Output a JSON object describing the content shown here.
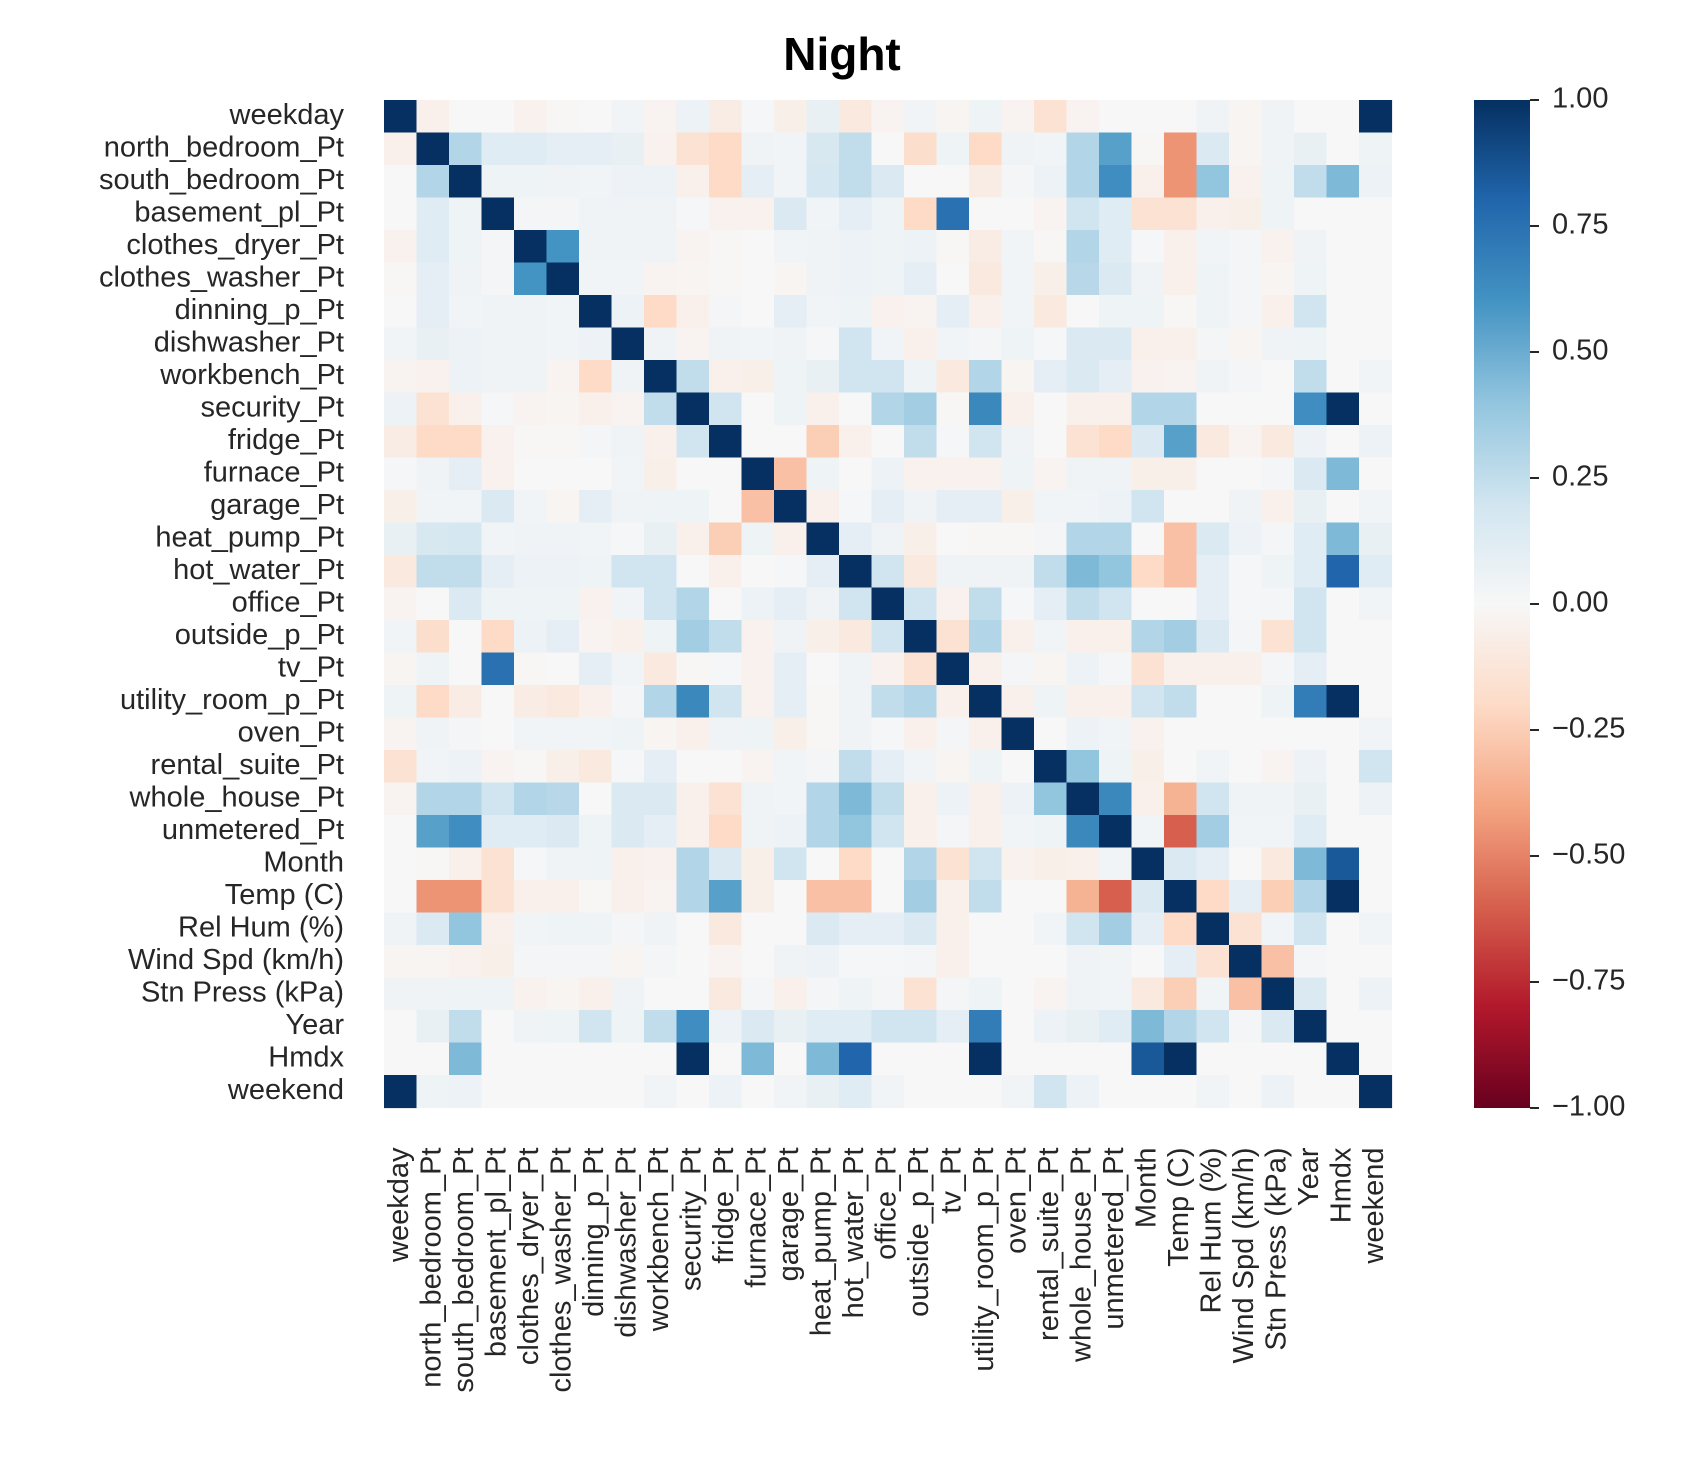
{
  "chart_data": {
    "type": "heatmap",
    "title": "Night",
    "xlabel": "",
    "ylabel": "",
    "variables": [
      "weekday",
      "north_bedroom_Pt",
      "south_bedroom_Pt",
      "basement_pl_Pt",
      "clothes_dryer_Pt",
      "clothes_washer_Pt",
      "dinning_p_Pt",
      "dishwasher_Pt",
      "workbench_Pt",
      "security_Pt",
      "fridge_Pt",
      "furnace_Pt",
      "garage_Pt",
      "heat_pump_Pt",
      "hot_water_Pt",
      "office_Pt",
      "outside_p_Pt",
      "tv_Pt",
      "utility_room_p_Pt",
      "oven_Pt",
      "rental_suite_Pt",
      "whole_house_Pt",
      "unmetered_Pt",
      "Month",
      "Temp (C)",
      "Rel Hum (%)",
      "Wind Spd (km/h)",
      "Stn Press (kPa)",
      "Year",
      "Hmdx",
      "weekend"
    ],
    "vmin": -1.0,
    "vmax": 1.0,
    "colormap": "RdBu",
    "colorbar_ticks": [
      "1.00",
      "0.75",
      "0.50",
      "0.25",
      "0.00",
      "−0.25",
      "−0.50",
      "−0.75",
      "−1.00"
    ],
    "colorbar_tick_values": [
      1.0,
      0.75,
      0.5,
      0.25,
      0.0,
      -0.25,
      -0.5,
      -0.75,
      -1.0
    ],
    "matrix": [
      [
        1,
        -0.05,
        0,
        0,
        -0.04,
        -0.01,
        0,
        0.03,
        -0.03,
        0.06,
        -0.08,
        0.01,
        -0.06,
        0.08,
        -0.1,
        -0.03,
        0.03,
        -0.02,
        0.05,
        -0.03,
        -0.15,
        -0.03,
        0,
        0,
        0,
        0.04,
        -0.02,
        0.04,
        0,
        0,
        1
      ],
      [
        -0.05,
        1,
        0.3,
        0.12,
        0.12,
        0.1,
        0.1,
        0.08,
        -0.04,
        -0.15,
        -0.2,
        0.04,
        0.03,
        0.17,
        0.25,
        0,
        -0.18,
        0.05,
        -0.2,
        0.04,
        0.03,
        0.3,
        0.55,
        -0.01,
        -0.45,
        0.15,
        -0.02,
        0.04,
        0.08,
        0,
        0.05
      ],
      [
        0,
        0.3,
        1,
        0.05,
        0.05,
        0.04,
        0.03,
        0.06,
        0.06,
        -0.05,
        -0.2,
        0.1,
        0.03,
        0.18,
        0.25,
        0.15,
        0,
        0,
        -0.08,
        0.02,
        0.06,
        0.3,
        0.62,
        -0.05,
        -0.45,
        0.4,
        -0.04,
        0.05,
        0.25,
        0.45,
        0.06
      ],
      [
        0,
        0.12,
        0.05,
        1,
        0.02,
        0.02,
        0.04,
        0.04,
        0.04,
        0.01,
        -0.04,
        -0.04,
        0.15,
        0.03,
        0.1,
        0.05,
        -0.2,
        0.75,
        0,
        0,
        -0.03,
        0.2,
        0.12,
        -0.15,
        -0.15,
        -0.05,
        -0.06,
        0.05,
        0,
        0,
        0
      ],
      [
        -0.04,
        0.12,
        0.05,
        0.02,
        1,
        0.6,
        0.04,
        0.04,
        0.04,
        -0.03,
        -0.01,
        0,
        0.03,
        0.04,
        0.06,
        0.05,
        0.06,
        -0.01,
        -0.08,
        0.03,
        -0.01,
        0.3,
        0.12,
        0.01,
        -0.05,
        0.03,
        0.02,
        -0.04,
        0.04,
        0,
        0
      ],
      [
        -0.01,
        0.1,
        0.04,
        0.02,
        0.6,
        1,
        0.03,
        0.03,
        -0.03,
        -0.02,
        -0.01,
        0,
        -0.02,
        0.04,
        0.06,
        0.05,
        0.1,
        0,
        -0.1,
        0.03,
        -0.06,
        0.28,
        0.15,
        0.04,
        -0.05,
        0.05,
        0.02,
        -0.02,
        0.05,
        0,
        0
      ],
      [
        0,
        0.1,
        0.03,
        0.04,
        0.04,
        0.03,
        1,
        0.06,
        -0.2,
        -0.05,
        0.02,
        0,
        0.1,
        0.03,
        0.05,
        -0.04,
        -0.03,
        0.1,
        -0.05,
        0.03,
        -0.1,
        0,
        0.05,
        0.05,
        -0.01,
        0.05,
        0.02,
        -0.05,
        0.2,
        0,
        0
      ],
      [
        0.03,
        0.08,
        0.06,
        0.04,
        0.04,
        0.03,
        0.06,
        1,
        0.04,
        -0.03,
        0.04,
        0.03,
        0.04,
        0.01,
        0.2,
        0.03,
        -0.05,
        0.03,
        0.02,
        0.05,
        0.01,
        0.15,
        0.15,
        -0.05,
        -0.05,
        0.02,
        -0.02,
        0.04,
        0.05,
        0,
        0
      ],
      [
        -0.03,
        -0.04,
        0.06,
        0.04,
        0.04,
        -0.03,
        -0.2,
        0.04,
        1,
        0.25,
        -0.05,
        -0.06,
        0.05,
        0.08,
        0.2,
        0.2,
        0.05,
        -0.1,
        0.3,
        -0.02,
        0.1,
        0.15,
        0.1,
        -0.04,
        -0.03,
        0.04,
        0.02,
        0,
        0.25,
        0,
        0.03
      ],
      [
        0.06,
        -0.15,
        -0.05,
        0.01,
        -0.03,
        -0.02,
        -0.05,
        -0.03,
        0.25,
        1,
        0.2,
        0,
        0.05,
        -0.05,
        0,
        0.3,
        0.35,
        -0.01,
        0.65,
        -0.05,
        0,
        -0.05,
        -0.05,
        0.3,
        0.3,
        0,
        0,
        0,
        0.62,
        1,
        0
      ],
      [
        -0.08,
        -0.2,
        -0.2,
        -0.04,
        -0.01,
        -0.01,
        0.02,
        0.04,
        -0.05,
        0.2,
        1,
        0,
        0,
        -0.25,
        -0.05,
        0,
        0.25,
        0.01,
        0.2,
        0.04,
        0,
        -0.15,
        -0.2,
        0.15,
        0.55,
        -0.1,
        -0.03,
        -0.1,
        0.06,
        0,
        0.06
      ],
      [
        0.01,
        0.04,
        0.1,
        -0.04,
        0,
        0,
        0,
        0.03,
        -0.06,
        0,
        0,
        1,
        -0.3,
        0.05,
        0,
        0.06,
        -0.04,
        -0.04,
        -0.04,
        0.05,
        -0.03,
        0.04,
        0.04,
        -0.06,
        -0.06,
        0,
        0,
        0.02,
        0.15,
        0.45,
        0
      ],
      [
        -0.06,
        0.03,
        0.03,
        0.15,
        0.03,
        -0.02,
        0.1,
        0.04,
        0.05,
        0.05,
        0,
        -0.3,
        1,
        -0.05,
        0.01,
        0.1,
        0.04,
        0.1,
        0.1,
        -0.06,
        0.03,
        0.03,
        0.06,
        0.2,
        0,
        0,
        0.04,
        -0.05,
        0.08,
        0,
        0.03
      ],
      [
        0.08,
        0.17,
        0.18,
        0.03,
        0.04,
        0.04,
        0.03,
        0.01,
        0.08,
        -0.05,
        -0.25,
        0.05,
        -0.05,
        1,
        0.1,
        0.04,
        -0.06,
        0,
        -0.01,
        -0.01,
        0.02,
        0.3,
        0.3,
        0,
        -0.3,
        0.15,
        0.06,
        0.02,
        0.12,
        0.45,
        0.08
      ],
      [
        -0.1,
        0.25,
        0.25,
        0.1,
        0.06,
        0.06,
        0.05,
        0.2,
        0.2,
        0,
        -0.05,
        0,
        0.01,
        0.1,
        1,
        0.2,
        -0.1,
        0.04,
        0.04,
        0.04,
        0.25,
        0.45,
        0.4,
        -0.2,
        -0.3,
        0.1,
        0.01,
        0.05,
        0.12,
        0.8,
        0.12
      ],
      [
        -0.03,
        0,
        0.15,
        0.05,
        0.05,
        0.05,
        -0.04,
        0.03,
        0.2,
        0.3,
        0,
        0.06,
        0.1,
        0.04,
        0.2,
        1,
        0.2,
        -0.04,
        0.25,
        0.01,
        0.1,
        0.25,
        0.2,
        0,
        0,
        0.1,
        0.01,
        0.02,
        0.2,
        0,
        0.03
      ],
      [
        0.03,
        -0.18,
        0,
        -0.2,
        0.06,
        0.1,
        -0.03,
        -0.05,
        0.05,
        0.35,
        0.25,
        -0.04,
        0.04,
        -0.06,
        -0.1,
        0.2,
        1,
        -0.15,
        0.3,
        -0.05,
        0.03,
        -0.05,
        -0.05,
        0.3,
        0.35,
        0.15,
        0.02,
        -0.15,
        0.2,
        0,
        0
      ],
      [
        -0.02,
        0.05,
        0,
        0.75,
        -0.01,
        0,
        0.1,
        0.03,
        -0.1,
        -0.01,
        0.01,
        -0.04,
        0.1,
        0,
        0.04,
        -0.04,
        -0.15,
        1,
        -0.05,
        0.02,
        -0.02,
        0.06,
        0.02,
        -0.15,
        -0.05,
        -0.05,
        -0.05,
        0.02,
        0.1,
        0,
        0
      ],
      [
        0.05,
        -0.2,
        -0.08,
        0,
        -0.08,
        -0.1,
        -0.05,
        0.02,
        0.3,
        0.65,
        0.2,
        -0.04,
        0.1,
        -0.01,
        0.04,
        0.25,
        0.3,
        -0.05,
        1,
        -0.05,
        0.05,
        -0.05,
        -0.05,
        0.2,
        0.25,
        0,
        0,
        0.05,
        0.7,
        1,
        0
      ],
      [
        -0.03,
        0.04,
        0.02,
        0,
        0.03,
        0.03,
        0.03,
        0.05,
        -0.02,
        -0.05,
        0.04,
        0.05,
        -0.06,
        -0.01,
        0.04,
        0.01,
        -0.05,
        0.02,
        -0.05,
        1,
        0,
        0.06,
        0.03,
        -0.04,
        0,
        0,
        0,
        0,
        0,
        0,
        0.03
      ],
      [
        -0.15,
        0.03,
        0.06,
        -0.03,
        -0.01,
        -0.06,
        -0.1,
        0.01,
        0.1,
        0,
        0,
        -0.03,
        0.03,
        0.02,
        0.25,
        0.1,
        0.03,
        -0.02,
        0.05,
        0,
        1,
        0.4,
        0.05,
        -0.06,
        0,
        0.03,
        0,
        -0.03,
        0.06,
        0,
        0.2
      ],
      [
        -0.03,
        0.3,
        0.3,
        0.2,
        0.3,
        0.28,
        0,
        0.15,
        0.15,
        -0.05,
        -0.15,
        0.04,
        0.03,
        0.3,
        0.45,
        0.25,
        -0.05,
        0.06,
        -0.05,
        0.06,
        0.4,
        1,
        0.65,
        -0.05,
        -0.35,
        0.2,
        0.04,
        0.04,
        0.08,
        0,
        0.06
      ],
      [
        0,
        0.55,
        0.62,
        0.12,
        0.12,
        0.15,
        0.05,
        0.15,
        0.1,
        -0.05,
        -0.2,
        0.04,
        0.06,
        0.3,
        0.4,
        0.2,
        -0.05,
        0.02,
        -0.05,
        0.03,
        0.05,
        0.65,
        1,
        0.03,
        -0.6,
        0.35,
        0.03,
        0.03,
        0.12,
        0,
        0
      ],
      [
        0,
        -0.01,
        -0.05,
        -0.15,
        0.01,
        0.04,
        0.05,
        -0.05,
        -0.04,
        0.3,
        0.15,
        -0.06,
        0.2,
        0,
        -0.2,
        0,
        0.3,
        -0.15,
        0.2,
        -0.04,
        -0.06,
        -0.05,
        0.03,
        1,
        0.15,
        0.1,
        0,
        -0.1,
        0.45,
        0.85,
        0
      ],
      [
        0,
        -0.45,
        -0.45,
        -0.15,
        -0.05,
        -0.05,
        -0.01,
        -0.05,
        -0.03,
        0.3,
        0.55,
        -0.06,
        0,
        -0.3,
        -0.3,
        0,
        0.35,
        -0.05,
        0.25,
        0,
        0,
        -0.35,
        -0.6,
        0.15,
        1,
        -0.2,
        0.1,
        -0.25,
        0.3,
        1,
        0
      ],
      [
        0.04,
        0.15,
        0.4,
        -0.05,
        0.03,
        0.05,
        0.05,
        0.02,
        0.04,
        0,
        -0.1,
        0,
        0,
        0.15,
        0.1,
        0.1,
        0.15,
        -0.05,
        0,
        0,
        0.03,
        0.2,
        0.35,
        0.1,
        -0.2,
        1,
        -0.15,
        0.03,
        0.2,
        0,
        0.03
      ],
      [
        -0.02,
        -0.02,
        -0.04,
        -0.06,
        0.02,
        0.02,
        0.02,
        -0.02,
        0.02,
        0,
        -0.03,
        0,
        0.04,
        0.06,
        0.01,
        0.01,
        0.02,
        -0.05,
        0,
        0,
        0,
        0.04,
        0.03,
        0,
        0.1,
        -0.15,
        1,
        -0.3,
        0.02,
        0,
        0
      ],
      [
        0.04,
        0.04,
        0.05,
        0.05,
        -0.04,
        -0.02,
        -0.05,
        0.04,
        0,
        0,
        -0.1,
        0.02,
        -0.05,
        0.02,
        0.05,
        0.02,
        -0.15,
        0.02,
        0.05,
        0,
        -0.03,
        0.04,
        0.03,
        -0.1,
        -0.25,
        0.03,
        -0.3,
        1,
        0.15,
        0,
        0.06
      ],
      [
        0,
        0.08,
        0.25,
        0,
        0.04,
        0.05,
        0.2,
        0.05,
        0.25,
        0.62,
        0.06,
        0.15,
        0.08,
        0.12,
        0.12,
        0.2,
        0.2,
        0.1,
        0.7,
        0,
        0.06,
        0.08,
        0.12,
        0.45,
        0.3,
        0.2,
        0.02,
        0.15,
        1,
        0,
        0
      ],
      [
        0,
        0,
        0.45,
        0,
        0,
        0,
        0,
        0,
        0,
        1,
        0,
        0.45,
        0,
        0.45,
        0.8,
        0,
        0,
        0,
        1,
        0,
        0,
        0,
        0,
        0.85,
        1,
        0,
        0,
        0,
        0,
        1,
        0
      ],
      [
        1,
        0.05,
        0.06,
        0,
        0,
        0,
        0,
        0,
        0.03,
        0,
        0.06,
        0,
        0.03,
        0.08,
        0.12,
        0.03,
        0,
        0,
        0,
        0.03,
        0.2,
        0.06,
        0,
        0,
        0,
        0.03,
        0,
        0.06,
        0,
        0,
        1
      ]
    ]
  }
}
